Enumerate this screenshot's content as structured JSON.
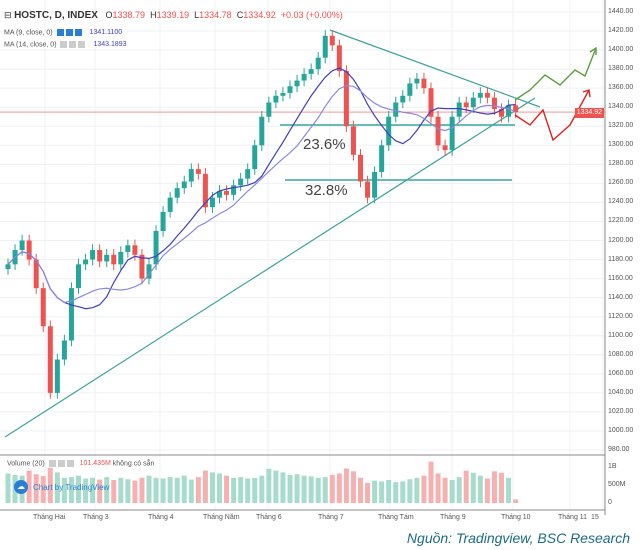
{
  "header": {
    "symbol": "HOSTC, D, INDEX",
    "o_label": "O",
    "o": "1338.79",
    "h_label": "H",
    "h": "1339.19",
    "l_label": "L",
    "l": "1334.78",
    "c_label": "C",
    "c": "1334.92",
    "change": "+0.03 (+0.00%)"
  },
  "ma1": {
    "label": "MA (9, close, 0)",
    "value": "1341.1100"
  },
  "ma2": {
    "label": "MA (14, close, 0)",
    "value": "1343.1893"
  },
  "volume": {
    "label": "Volume (20)",
    "value": "101.435M",
    "note": "không có sẵn"
  },
  "branding": "Chart by TradingView",
  "source": "Nguồn: Tradingview, BSC Research",
  "last_price_tag": "1334.92",
  "annotations": {
    "fib1": "23.6%",
    "fib2": "32.8%"
  },
  "colors": {
    "up": "#26a69a",
    "down": "#ef5350",
    "ma9": "#3f3fbf",
    "ma14": "#8a8ae0",
    "trendline": "#3aa59a",
    "bull_arrow": "#5a9e3a",
    "bear_arrow": "#e0231c"
  },
  "chart_data": {
    "type": "candlestick",
    "ylim": [
      980,
      1440
    ],
    "y_ticks": [
      "1440.00",
      "1420.00",
      "1400.00",
      "1380.00",
      "1360.00",
      "1340.00",
      "1320.00",
      "1300.00",
      "1280.00",
      "1260.00",
      "1240.00",
      "1220.00",
      "1200.00",
      "1180.00",
      "1160.00",
      "1140.00",
      "1120.00",
      "1100.00",
      "1080.00",
      "1060.00",
      "1040.00",
      "1020.00",
      "1000.00",
      "980.00"
    ],
    "volume_ticks": [
      "1B",
      "500M",
      "0"
    ],
    "x_ticks": [
      "Tháng Hai",
      "Tháng 3",
      "Tháng 4",
      "Tháng Năm",
      "Tháng 6",
      "Tháng 7",
      "Tháng Tám",
      "Tháng 9",
      "Tháng 10",
      "Tháng 11",
      "15"
    ],
    "close": [
      1175,
      1190,
      1200,
      1180,
      1150,
      1110,
      1040,
      1075,
      1095,
      1150,
      1175,
      1180,
      1190,
      1178,
      1185,
      1175,
      1188,
      1195,
      1185,
      1160,
      1175,
      1210,
      1230,
      1245,
      1255,
      1262,
      1275,
      1270,
      1235,
      1245,
      1252,
      1248,
      1258,
      1265,
      1275,
      1300,
      1330,
      1345,
      1352,
      1355,
      1362,
      1368,
      1375,
      1380,
      1392,
      1415,
      1405,
      1378,
      1320,
      1290,
      1262,
      1245,
      1272,
      1300,
      1330,
      1345,
      1352,
      1365,
      1370,
      1360,
      1330,
      1300,
      1295,
      1330,
      1345,
      1340,
      1350,
      1355,
      1350,
      1338,
      1330,
      1342,
      1334.92
    ],
    "volume_m": [
      820,
      780,
      760,
      900,
      800,
      750,
      980,
      850,
      700,
      720,
      760,
      680,
      700,
      650,
      720,
      640,
      700,
      660,
      620,
      700,
      760,
      700,
      680,
      720,
      700,
      760,
      650,
      720,
      900,
      850,
      820,
      760,
      700,
      720,
      680,
      700,
      760,
      950,
      900,
      850,
      780,
      800,
      760,
      740,
      700,
      720,
      780,
      820,
      960,
      880,
      700,
      560,
      620,
      600,
      640,
      580,
      600,
      660,
      700,
      760,
      1150,
      820,
      700,
      640,
      720,
      900,
      840,
      760,
      680,
      880,
      840,
      700,
      100
    ],
    "moving_averages": [
      "MA 9",
      "MA 14"
    ]
  }
}
